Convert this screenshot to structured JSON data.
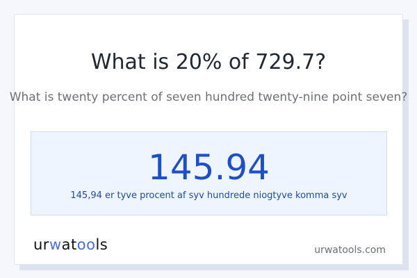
{
  "title": "What is 20% of 729.7?",
  "subtitle": "What is twenty percent of seven hundred twenty-nine point seven?",
  "result": {
    "value": "145.94",
    "words": "145,94 er tyve procent af syv hundrede niogtyve komma syv"
  },
  "footer": {
    "logo": "urwatools",
    "site": "urwatools.com"
  },
  "colors": {
    "accent": "#1f4fc4",
    "result_bg": "#eef5ff",
    "logo_accent": "#4a6ee0"
  }
}
